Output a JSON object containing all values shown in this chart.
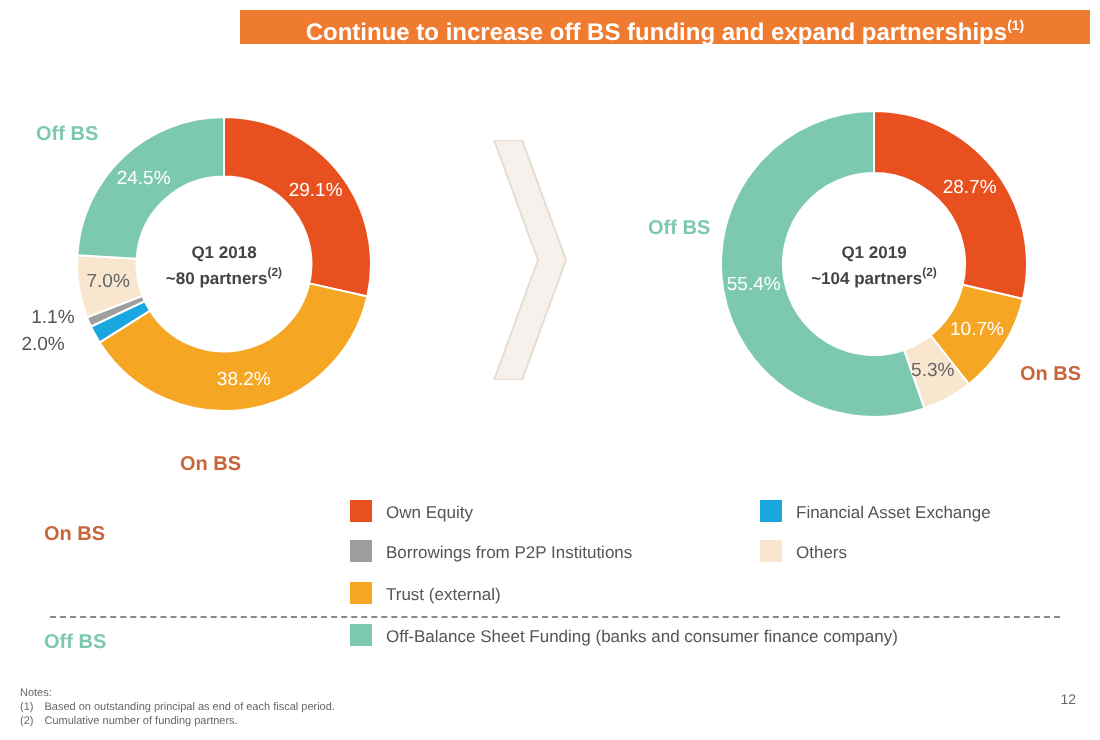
{
  "chart_data": [
    {
      "type": "donut",
      "title": "Continue to increase off BS funding and expand partnerships$^{(1)}$",
      "subtitle": "Q1 2018\n~80 partners$^{(2)}$",
      "categories": [
        "Own Equity",
        "Trust (external)",
        "Financial Asset Exchange",
        "Borrowings from P2P Institutions",
        "Others",
        "Off-Balance Sheet Funding (banks and consumer finance company)"
      ],
      "values": [
        29.1,
        38.2,
        2.0,
        1.1,
        7.0,
        24.5
      ],
      "colors": [
        "#e8501f",
        "#f5a623",
        "#1aa7e0",
        "#9e9e9e",
        "#f8e6cf",
        "#7dc8b0"
      ],
      "value_labels": [
        "29.1%",
        "38.2%",
        "2.0%",
        "1.1%",
        "7.0%",
        "24.5%"
      ],
      "legend": "bottom",
      "annotations": [
        "Off BS",
        "On BS",
        "On BS",
        "Off BS",
        "Notes:",
        "(1) Based on outstanding principal as end of each fiscal period.",
        "(2) Cumulative number of funding partners.",
        "12"
      ]
    },
    {
      "type": "donut",
      "subtitle": "Q1 2019\n~104 partners$^{(2)}$",
      "categories": [
        null,
        null,
        null,
        null
      ],
      "values": [
        28.7,
        10.7,
        5.3,
        55.4
      ],
      "colors": [
        "#e8501f",
        "#f5a623",
        "#f8e6cf",
        "#7dc8b0"
      ],
      "value_labels": [
        "28.7%",
        "10.7%",
        "5.3%",
        "55.4%"
      ],
      "annotations": [
        "Off BS",
        "On BS"
      ]
    }
  ]
}
